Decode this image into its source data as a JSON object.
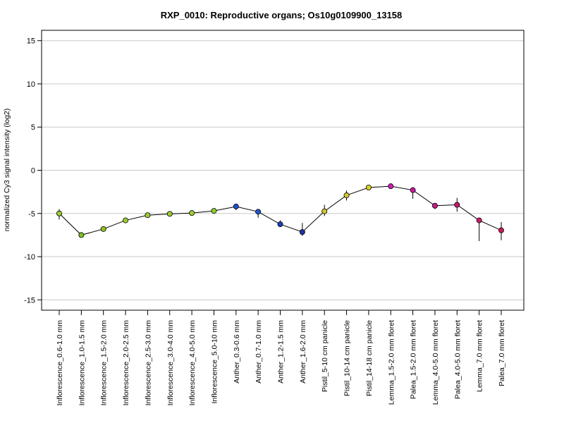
{
  "chart_data": {
    "type": "line",
    "title": "RXP_0010: Reproductive organs; Os10g0109900_13158",
    "xlabel": "",
    "ylabel": "normalized Cy3 signal intensity (log2)",
    "ylim": [
      -16.2,
      16.2
    ],
    "yticks": [
      -15,
      -10,
      -5,
      0,
      5,
      10,
      15
    ],
    "grid": true,
    "categories": [
      "Inflorescence_0.6-1.0 mm",
      "Inflorescence_1.0-1.5 mm",
      "Inflorescence_1.5-2.0 mm",
      "Inflorescence_2.0-2.5 mm",
      "Inflorescence_2.5-3.0 mm",
      "Inflorescence_3.0-4.0 mm",
      "Inflorescence_4.0-5.0 mm",
      "Inflorescence_5.0-10 mm",
      "Anther_0.3-0.6 mm",
      "Anther_0.7-1.0 mm",
      "Anther_1.2-1.5 mm",
      "Anther_1.6-2.0 mm",
      "Pistil_5-10 cm panicle",
      "Pistil_10-14 cm panicle",
      "Pistil_14-18 cm panicle",
      "Lemma_1.5-2.0 mm floret",
      "Palea_1.5-2.0 mm floret",
      "Lemma_4.0-5.0 mm floret",
      "Palea_4.0-5.0 mm floret",
      "Lemma_7.0 mm floret",
      "Palea_7.0 mm floret"
    ],
    "values": [
      -5.0,
      -7.5,
      -6.8,
      -5.8,
      -5.2,
      -5.05,
      -4.95,
      -4.7,
      -4.2,
      -4.8,
      -6.25,
      -7.15,
      -4.75,
      -2.9,
      -2.0,
      -1.85,
      -2.3,
      -4.1,
      -4.0,
      -5.8,
      -6.95
    ],
    "error_low": [
      -5.7,
      -7.7,
      -6.95,
      -5.95,
      -5.45,
      -5.25,
      -5.1,
      -4.95,
      -4.6,
      -5.5,
      -6.5,
      -7.6,
      -5.3,
      -3.5,
      -2.2,
      -2.0,
      -3.3,
      -4.5,
      -4.8,
      -8.2,
      -8.1
    ],
    "error_high": [
      -4.5,
      -7.3,
      -6.65,
      -5.65,
      -5.0,
      -4.85,
      -4.8,
      -4.45,
      -3.85,
      -4.5,
      -5.8,
      -6.1,
      -4.0,
      -2.35,
      -1.8,
      -1.7,
      -2.1,
      -3.8,
      -3.2,
      -5.5,
      -6.0
    ],
    "colors": [
      "#9acd32",
      "#7fc31f",
      "#8ec41b",
      "#9acd32",
      "#9acd32",
      "#9acd32",
      "#9acd32",
      "#8ad12a",
      "#1f4fd1",
      "#2756c9",
      "#1d3fb8",
      "#2333a8",
      "#d6c624",
      "#d9c52a",
      "#d9d326",
      "#cc1fb8",
      "#c21aa3",
      "#c41a8a",
      "#c8166e",
      "#d11a6a",
      "#d1175e"
    ]
  }
}
